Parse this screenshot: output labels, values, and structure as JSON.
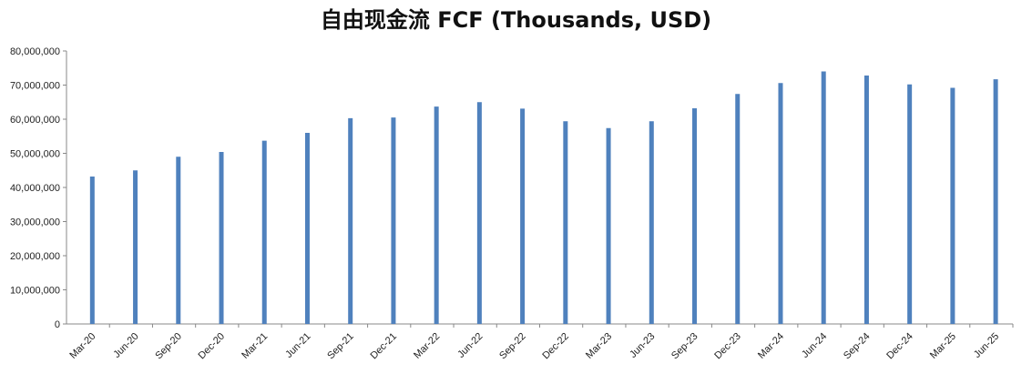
{
  "chart_data": {
    "type": "bar",
    "title": "自由现金流 FCF (Thousands, USD)",
    "xlabel": "",
    "ylabel": "",
    "ylim": [
      0,
      80000000
    ],
    "yticks": [
      {
        "value": 0,
        "label": "0"
      },
      {
        "value": 10000000,
        "label": "10,000,000"
      },
      {
        "value": 20000000,
        "label": "20,000,000"
      },
      {
        "value": 30000000,
        "label": "30,000,000"
      },
      {
        "value": 40000000,
        "label": "40,000,000"
      },
      {
        "value": 50000000,
        "label": "50,000,000"
      },
      {
        "value": 60000000,
        "label": "60,000,000"
      },
      {
        "value": 70000000,
        "label": "70,000,000"
      },
      {
        "value": 80000000,
        "label": "80,000,000"
      }
    ],
    "grid": false,
    "legend": "none",
    "bar_color": "#4f81bd",
    "categories": [
      "Mar-20",
      "Jun-20",
      "Sep-20",
      "Dec-20",
      "Mar-21",
      "Jun-21",
      "Sep-21",
      "Dec-21",
      "Mar-22",
      "Jun-22",
      "Sep-22",
      "Dec-22",
      "Mar-23",
      "Jun-23",
      "Sep-23",
      "Dec-23",
      "Mar-24",
      "Jun-24",
      "Sep-24",
      "Dec-24",
      "Mar-25",
      "Jun-25"
    ],
    "values": [
      43200000,
      45000000,
      49000000,
      50400000,
      53700000,
      56000000,
      60300000,
      60500000,
      63700000,
      65000000,
      63100000,
      59400000,
      57400000,
      59400000,
      63200000,
      67400000,
      70600000,
      74000000,
      72800000,
      70200000,
      69200000,
      71700000
    ]
  }
}
